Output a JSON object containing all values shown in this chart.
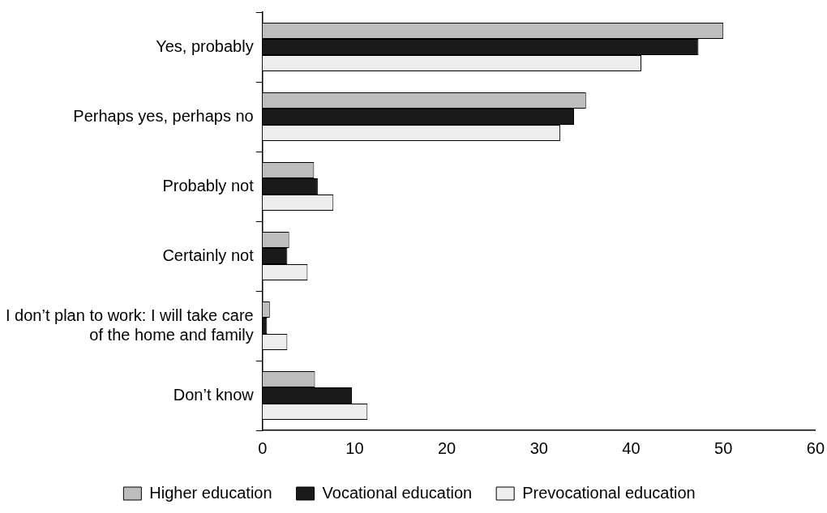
{
  "chart_data": {
    "type": "bar",
    "orientation": "horizontal",
    "categories": [
      "Yes, probably",
      "Perhaps yes, perhaps no",
      "Probably not",
      "Certainly not",
      "I don’t plan to work: I will take care\nof the home and family",
      "Don’t know"
    ],
    "series": [
      {
        "name": "Higher education",
        "color": "#bdbdbd",
        "values": [
          50.0,
          35.1,
          5.6,
          2.9,
          0.8,
          5.7
        ]
      },
      {
        "name": "Vocational education",
        "color": "#1a1a1a",
        "values": [
          47.3,
          33.8,
          6.0,
          2.7,
          0.5,
          9.7
        ]
      },
      {
        "name": "Prevocational education",
        "color": "#eeeeee",
        "values": [
          41.1,
          32.3,
          7.7,
          4.9,
          2.7,
          11.4
        ]
      }
    ],
    "xlim": [
      0,
      60
    ],
    "xticks": [
      0,
      10,
      20,
      30,
      40,
      50,
      60
    ],
    "grid": false,
    "legend": "bottom"
  }
}
